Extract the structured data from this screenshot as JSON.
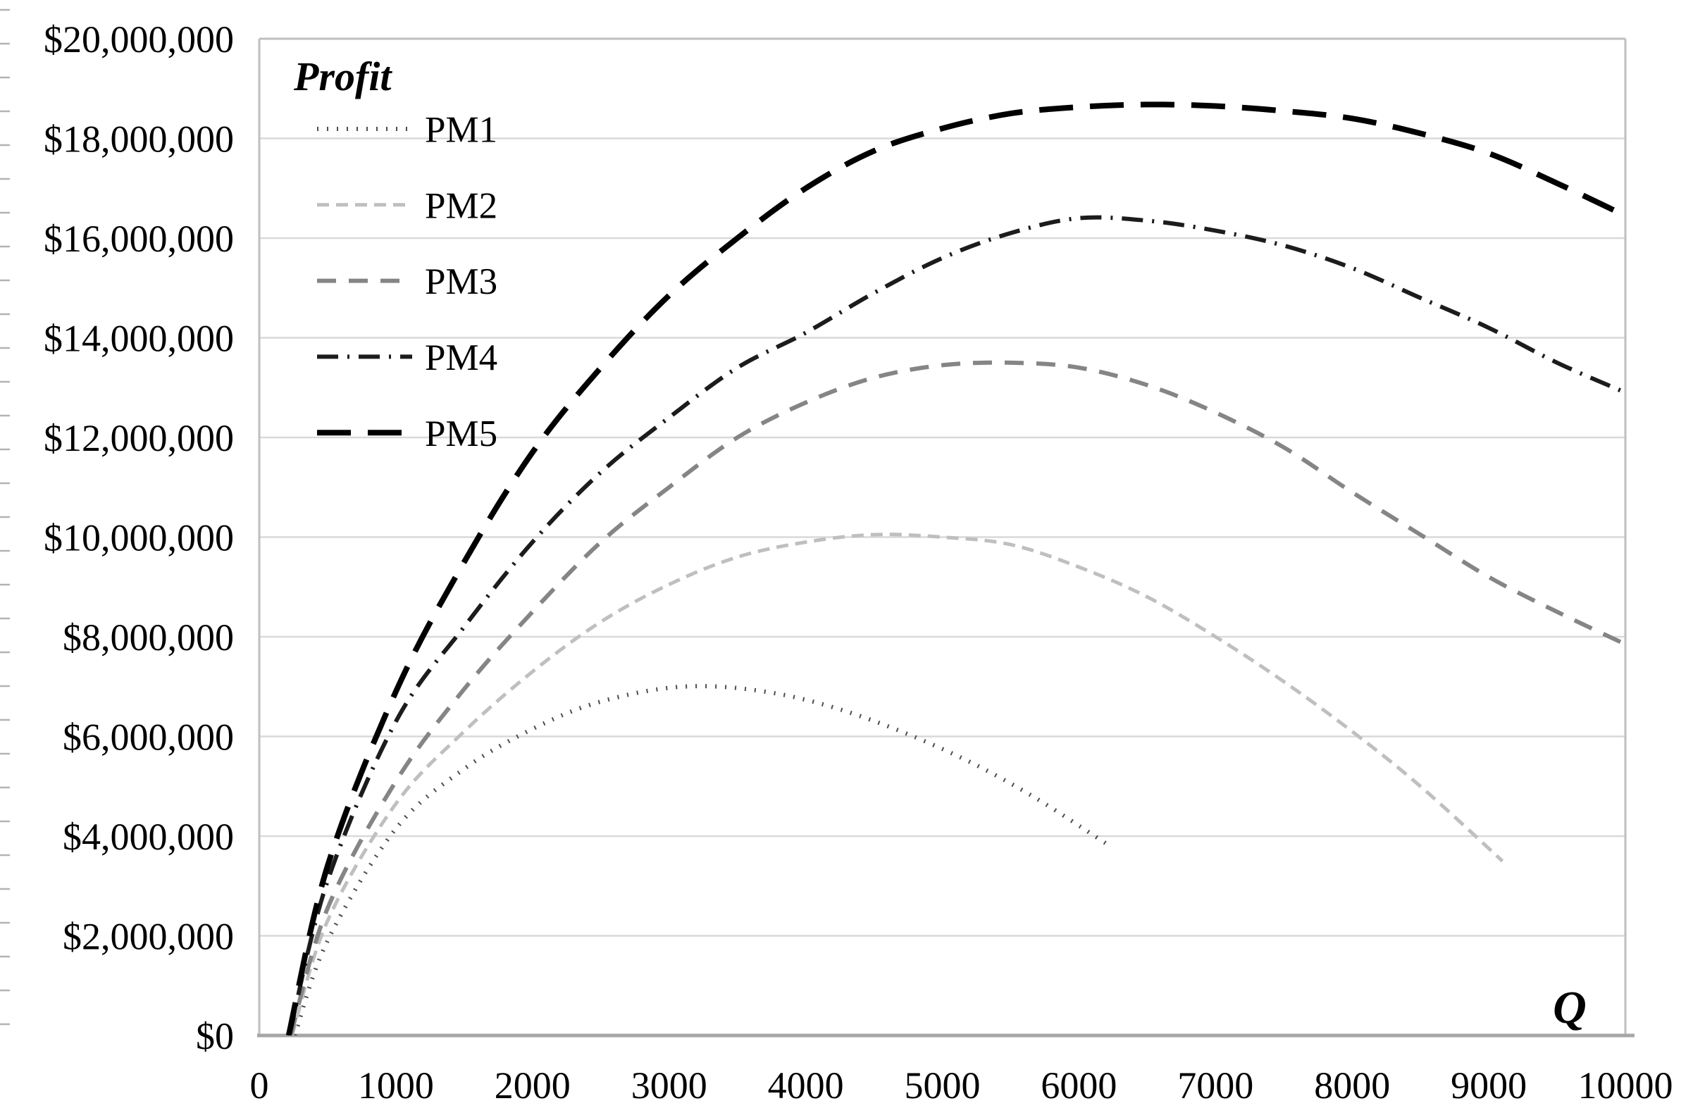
{
  "chart": {
    "legend_title": "Profit",
    "x_axis_title": "Q",
    "colors": {
      "gridline": "#d9d9d9",
      "plot_border": "#bfbfbf",
      "x_axis_line": "#a6a6a6",
      "minor_tick": "#b3b3b3",
      "text": "#000000"
    }
  },
  "chart_data": {
    "type": "line",
    "title": "Profit",
    "xlabel": "Q",
    "ylabel": "Profit",
    "xlim": [
      0,
      10000
    ],
    "ylim": [
      0,
      20000000
    ],
    "grid": "horizontal-major",
    "legend_position": "inside-top-left",
    "x_ticks": [
      0,
      1000,
      2000,
      3000,
      4000,
      5000,
      6000,
      7000,
      8000,
      9000,
      10000
    ],
    "x_tick_labels": [
      "0",
      "1000",
      "2000",
      "3000",
      "4000",
      "5000",
      "6000",
      "7000",
      "8000",
      "9000",
      "10000"
    ],
    "y_ticks": [
      0,
      2000000,
      4000000,
      6000000,
      8000000,
      10000000,
      12000000,
      14000000,
      16000000,
      18000000,
      20000000
    ],
    "y_tick_labels": [
      "$0",
      "$2,000,000",
      "$4,000,000",
      "$6,000,000",
      "$8,000,000",
      "$10,000,000",
      "$12,000,000",
      "$14,000,000",
      "$16,000,000",
      "$18,000,000",
      "$20,000,000"
    ],
    "series": [
      {
        "name": "PM1",
        "line_style": "dotted",
        "color": "#4d4d4d",
        "stroke_width": 6,
        "dash": "2 12",
        "points": [
          [
            260,
            0
          ],
          [
            500,
            1900000
          ],
          [
            1000,
            4150000
          ],
          [
            1500,
            5350000
          ],
          [
            2000,
            6150000
          ],
          [
            2500,
            6700000
          ],
          [
            3100,
            7000000
          ],
          [
            3700,
            6900000
          ],
          [
            4300,
            6500000
          ],
          [
            5000,
            5750000
          ],
          [
            5600,
            4900000
          ],
          [
            6200,
            3850000
          ]
        ]
      },
      {
        "name": "PM2",
        "line_style": "short-dash",
        "color": "#bfbfbf",
        "stroke_width": 5,
        "dash": "17 10",
        "points": [
          [
            240,
            0
          ],
          [
            500,
            2300000
          ],
          [
            1000,
            4650000
          ],
          [
            1500,
            6100000
          ],
          [
            2000,
            7300000
          ],
          [
            2500,
            8300000
          ],
          [
            3000,
            9050000
          ],
          [
            3500,
            9600000
          ],
          [
            4000,
            9900000
          ],
          [
            4500,
            10050000
          ],
          [
            5000,
            10000000
          ],
          [
            5500,
            9850000
          ],
          [
            6000,
            9400000
          ],
          [
            6500,
            8800000
          ],
          [
            7000,
            8000000
          ],
          [
            7500,
            7100000
          ],
          [
            8000,
            6100000
          ],
          [
            8500,
            5000000
          ],
          [
            9100,
            3500000
          ]
        ]
      },
      {
        "name": "PM3",
        "line_style": "dash",
        "color": "#858585",
        "stroke_width": 6,
        "dash": "27 18",
        "points": [
          [
            230,
            0
          ],
          [
            500,
            2550000
          ],
          [
            1000,
            5100000
          ],
          [
            1500,
            6950000
          ],
          [
            2000,
            8500000
          ],
          [
            2500,
            9900000
          ],
          [
            3000,
            11000000
          ],
          [
            3500,
            12000000
          ],
          [
            4000,
            12700000
          ],
          [
            4500,
            13200000
          ],
          [
            5000,
            13450000
          ],
          [
            5500,
            13500000
          ],
          [
            6000,
            13400000
          ],
          [
            6500,
            13050000
          ],
          [
            7000,
            12500000
          ],
          [
            7500,
            11800000
          ],
          [
            8000,
            10900000
          ],
          [
            8500,
            10050000
          ],
          [
            9000,
            9200000
          ],
          [
            9500,
            8500000
          ],
          [
            10000,
            7850000
          ]
        ]
      },
      {
        "name": "PM4",
        "line_style": "dash-dot",
        "color": "#1c1c1c",
        "stroke_width": 6,
        "dash": "30 13 3 13",
        "points": [
          [
            220,
            0
          ],
          [
            500,
            3100000
          ],
          [
            1000,
            6300000
          ],
          [
            1500,
            8200000
          ],
          [
            2000,
            9900000
          ],
          [
            2500,
            11300000
          ],
          [
            3000,
            12400000
          ],
          [
            3500,
            13400000
          ],
          [
            4000,
            14100000
          ],
          [
            4500,
            14900000
          ],
          [
            5000,
            15600000
          ],
          [
            5500,
            16100000
          ],
          [
            6000,
            16400000
          ],
          [
            6500,
            16350000
          ],
          [
            7000,
            16150000
          ],
          [
            7500,
            15850000
          ],
          [
            8000,
            15400000
          ],
          [
            8500,
            14800000
          ],
          [
            9000,
            14200000
          ],
          [
            9500,
            13500000
          ],
          [
            10000,
            12900000
          ]
        ]
      },
      {
        "name": "PM5",
        "line_style": "long-dash",
        "color": "#000000",
        "stroke_width": 8,
        "dash": "48 24",
        "points": [
          [
            215,
            0
          ],
          [
            500,
            3400000
          ],
          [
            1000,
            6900000
          ],
          [
            1500,
            9500000
          ],
          [
            2000,
            11700000
          ],
          [
            2500,
            13400000
          ],
          [
            3000,
            14850000
          ],
          [
            3500,
            16000000
          ],
          [
            4000,
            17000000
          ],
          [
            4500,
            17750000
          ],
          [
            5000,
            18200000
          ],
          [
            5500,
            18500000
          ],
          [
            6000,
            18630000
          ],
          [
            6500,
            18680000
          ],
          [
            7000,
            18650000
          ],
          [
            7500,
            18550000
          ],
          [
            8000,
            18400000
          ],
          [
            8500,
            18100000
          ],
          [
            9000,
            17700000
          ],
          [
            9500,
            17100000
          ],
          [
            10000,
            16450000
          ]
        ]
      }
    ]
  }
}
